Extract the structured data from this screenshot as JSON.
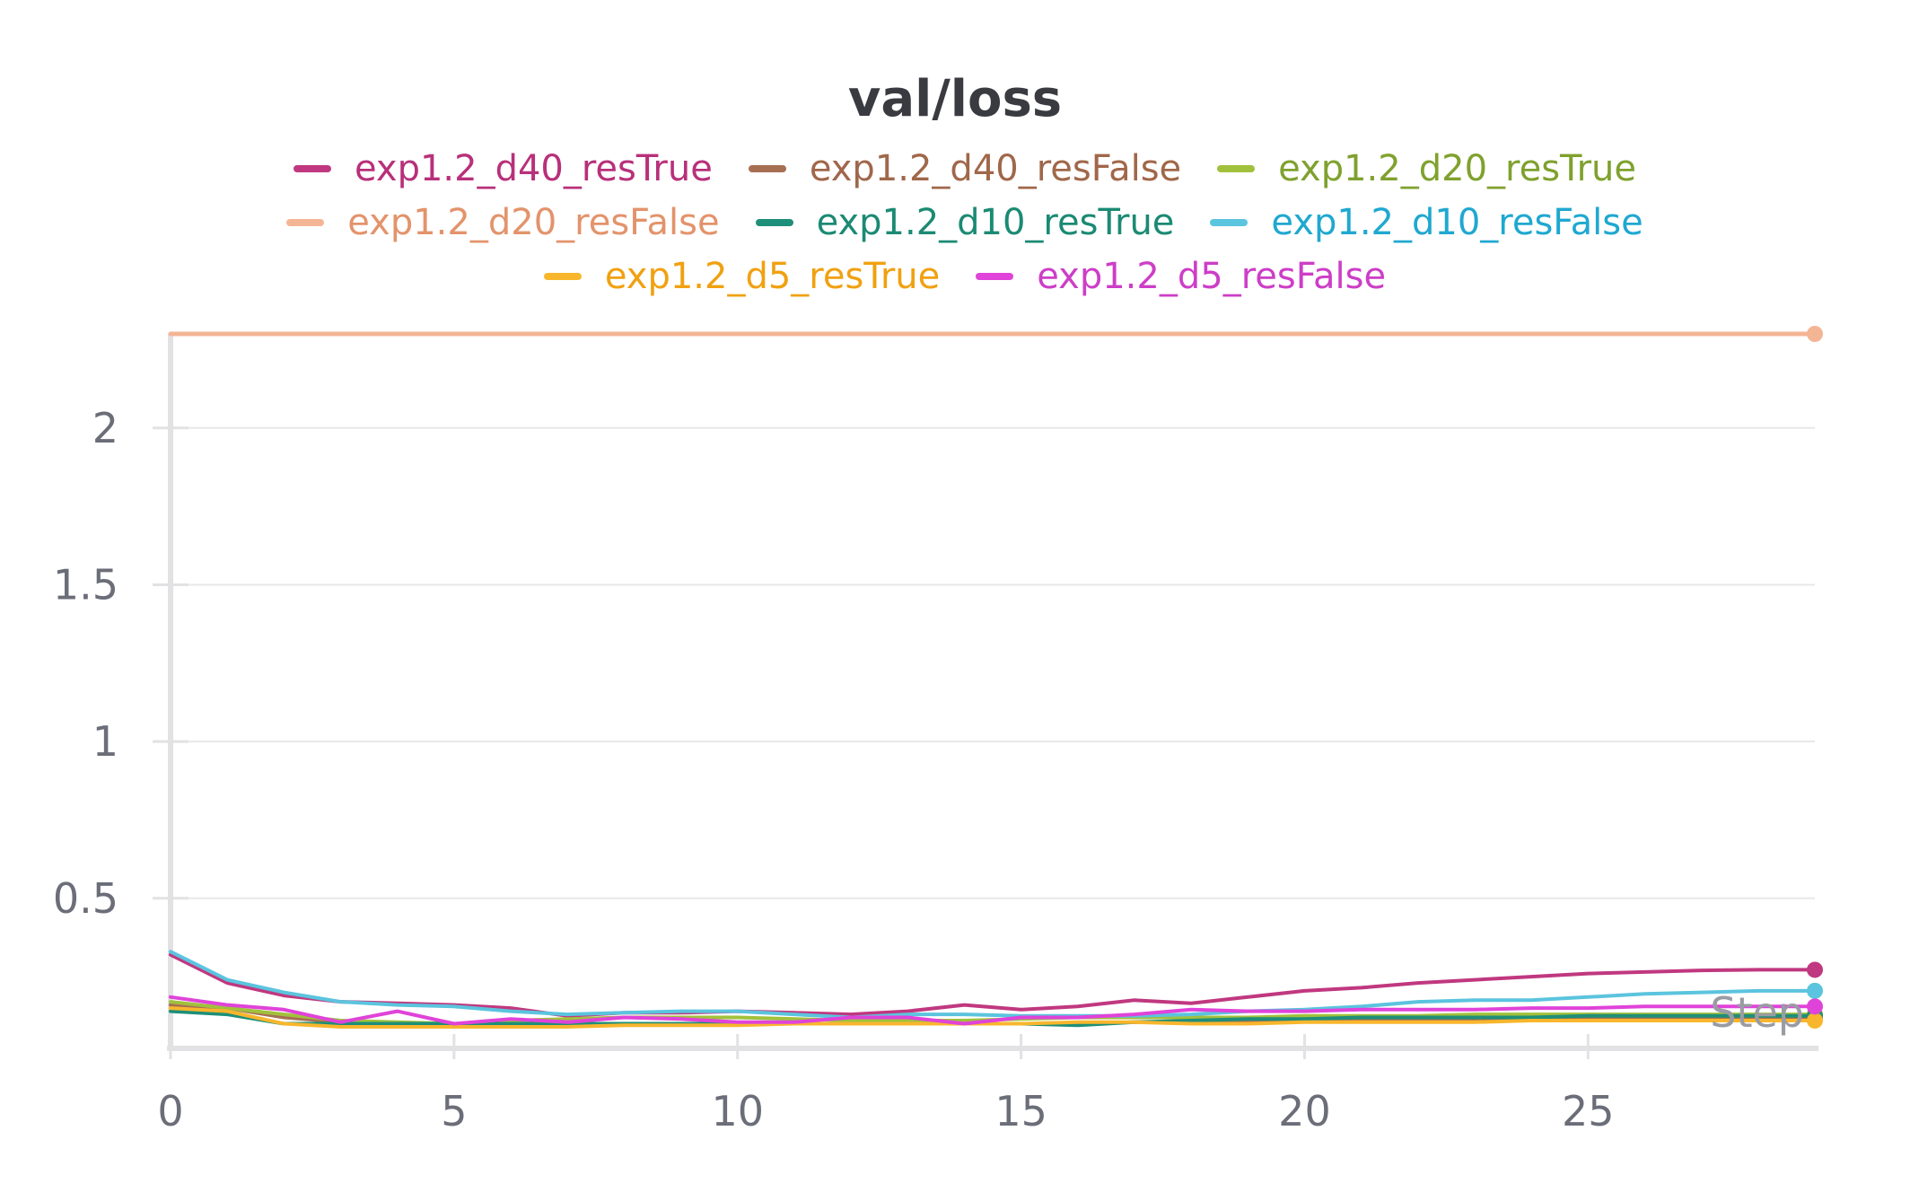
{
  "chart_data": {
    "type": "line",
    "title": "val/loss",
    "xlabel": "Step",
    "ylabel": "",
    "xlim": [
      0,
      29
    ],
    "ylim": [
      0.05,
      2.3
    ],
    "x_ticks": [
      0,
      5,
      10,
      15,
      20,
      25
    ],
    "y_ticks": [
      0.5,
      1,
      1.5,
      2
    ],
    "grid": true,
    "legend_position": "top",
    "x": [
      0,
      1,
      2,
      3,
      4,
      5,
      6,
      7,
      8,
      9,
      10,
      11,
      12,
      13,
      14,
      15,
      16,
      17,
      18,
      19,
      20,
      21,
      22,
      23,
      24,
      25,
      26,
      27,
      28,
      29
    ],
    "series": [
      {
        "name": "exp1.2_d40_resTrue",
        "color": "#c0387f",
        "label_color": "#b8307a",
        "values": [
          0.32,
          0.23,
          0.19,
          0.17,
          0.165,
          0.16,
          0.15,
          0.125,
          0.135,
          0.135,
          0.14,
          0.135,
          0.13,
          0.14,
          0.16,
          0.145,
          0.155,
          0.175,
          0.165,
          0.185,
          0.205,
          0.215,
          0.23,
          0.24,
          0.25,
          0.26,
          0.265,
          0.27,
          0.272,
          0.272
        ]
      },
      {
        "name": "exp1.2_d40_resFalse",
        "color": "#a66f52",
        "label_color": "#a0674a",
        "values": [
          0.16,
          0.15,
          0.12,
          0.105,
          0.1,
          0.1,
          0.1,
          0.1,
          0.1,
          0.1,
          0.1,
          0.1,
          0.1,
          0.1,
          0.1,
          0.1,
          0.1,
          0.105,
          0.105,
          0.11,
          0.11,
          0.115,
          0.115,
          0.115,
          0.115,
          0.12,
          0.12,
          0.12,
          0.12,
          0.12
        ]
      },
      {
        "name": "exp1.2_d20_resTrue",
        "color": "#a1c13c",
        "label_color": "#7fa12e",
        "values": [
          0.17,
          0.15,
          0.13,
          0.11,
          0.105,
          0.1,
          0.11,
          0.115,
          0.12,
          0.12,
          0.12,
          0.115,
          0.11,
          0.11,
          0.11,
          0.115,
          0.12,
          0.12,
          0.12,
          0.12,
          0.125,
          0.125,
          0.125,
          0.13,
          0.13,
          0.13,
          0.13,
          0.13,
          0.13,
          0.13
        ]
      },
      {
        "name": "exp1.2_d20_resFalse",
        "color": "#f4b595",
        "label_color": "#e3936b",
        "values": [
          2.3,
          2.3,
          2.3,
          2.3,
          2.3,
          2.3,
          2.3,
          2.3,
          2.3,
          2.3,
          2.3,
          2.3,
          2.3,
          2.3,
          2.3,
          2.3,
          2.3,
          2.3,
          2.3,
          2.3,
          2.3,
          2.3,
          2.3,
          2.3,
          2.3,
          2.3,
          2.3,
          2.3,
          2.3,
          2.3
        ]
      },
      {
        "name": "exp1.2_d10_resTrue",
        "color": "#1e8f78",
        "label_color": "#1b8a73",
        "values": [
          0.14,
          0.13,
          0.1,
          0.1,
          0.1,
          0.1,
          0.1,
          0.1,
          0.1,
          0.1,
          0.1,
          0.1,
          0.1,
          0.1,
          0.1,
          0.1,
          0.095,
          0.105,
          0.11,
          0.115,
          0.115,
          0.12,
          0.12,
          0.12,
          0.12,
          0.125,
          0.125,
          0.125,
          0.125,
          0.125
        ]
      },
      {
        "name": "exp1.2_d10_resFalse",
        "color": "#5bc4de",
        "label_color": "#1fa8d0",
        "values": [
          0.33,
          0.24,
          0.2,
          0.17,
          0.16,
          0.155,
          0.14,
          0.13,
          0.135,
          0.14,
          0.14,
          0.13,
          0.12,
          0.13,
          0.13,
          0.125,
          0.125,
          0.125,
          0.13,
          0.14,
          0.145,
          0.155,
          0.17,
          0.175,
          0.175,
          0.185,
          0.195,
          0.2,
          0.205,
          0.205
        ]
      },
      {
        "name": "exp1.2_d5_resTrue",
        "color": "#f8b62d",
        "label_color": "#f0a111",
        "values": [
          0.15,
          0.14,
          0.1,
          0.09,
          0.09,
          0.09,
          0.09,
          0.09,
          0.095,
          0.095,
          0.095,
          0.1,
          0.1,
          0.1,
          0.1,
          0.1,
          0.105,
          0.105,
          0.1,
          0.1,
          0.105,
          0.105,
          0.105,
          0.105,
          0.11,
          0.11,
          0.11,
          0.11,
          0.11,
          0.11
        ]
      },
      {
        "name": "exp1.2_d5_resFalse",
        "color": "#e043d9",
        "label_color": "#cd3ec7",
        "values": [
          0.185,
          0.16,
          0.145,
          0.105,
          0.14,
          0.1,
          0.115,
          0.105,
          0.12,
          0.115,
          0.105,
          0.105,
          0.12,
          0.12,
          0.1,
          0.12,
          0.12,
          0.13,
          0.145,
          0.14,
          0.14,
          0.145,
          0.145,
          0.145,
          0.15,
          0.15,
          0.155,
          0.155,
          0.155,
          0.155
        ]
      }
    ]
  }
}
